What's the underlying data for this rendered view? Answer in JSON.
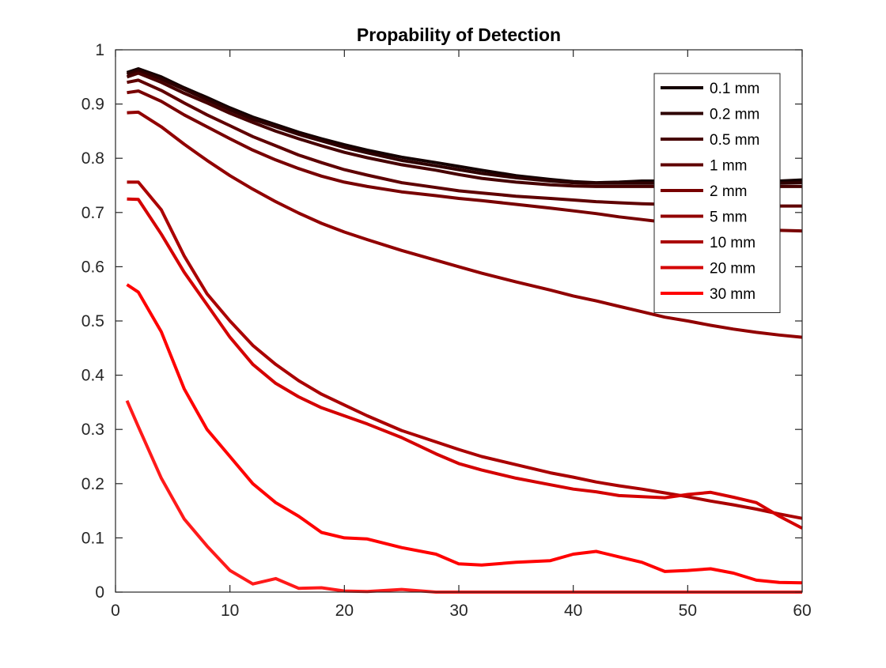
{
  "chart_data": {
    "type": "line",
    "title": "Propability of Detection",
    "xlabel": "",
    "ylabel": "",
    "xlim": [
      0,
      60
    ],
    "ylim": [
      0,
      1
    ],
    "xticks": [
      0,
      10,
      20,
      30,
      40,
      50,
      60
    ],
    "yticks": [
      0,
      0.1,
      0.2,
      0.3,
      0.4,
      0.5,
      0.6,
      0.7,
      0.8,
      0.9,
      1
    ],
    "xtick_labels": [
      "0",
      "10",
      "20",
      "30",
      "40",
      "50",
      "60"
    ],
    "ytick_labels": [
      "0",
      "0.1",
      "0.2",
      "0.3",
      "0.4",
      "0.5",
      "0.6",
      "0.7",
      "0.8",
      "0.9",
      "1"
    ],
    "grid": false,
    "legend_position": "top-right",
    "x": [
      1,
      2,
      4,
      6,
      8,
      10,
      12,
      14,
      16,
      18,
      20,
      22,
      25,
      28,
      30,
      32,
      35,
      38,
      40,
      42,
      44,
      46,
      48,
      50,
      52,
      54,
      56,
      58,
      60
    ],
    "series": [
      {
        "name": "0.1 mm",
        "color": "#140000",
        "values": [
          0.958,
          0.965,
          0.95,
          0.93,
          0.912,
          0.893,
          0.876,
          0.862,
          0.848,
          0.836,
          0.825,
          0.815,
          0.802,
          0.792,
          0.785,
          0.778,
          0.768,
          0.761,
          0.757,
          0.755,
          0.756,
          0.758,
          0.758,
          0.758,
          0.758,
          0.758,
          0.758,
          0.758,
          0.76
        ]
      },
      {
        "name": "0.2 mm",
        "color": "#2d0000",
        "values": [
          0.955,
          0.962,
          0.946,
          0.927,
          0.908,
          0.889,
          0.872,
          0.858,
          0.844,
          0.832,
          0.82,
          0.81,
          0.796,
          0.786,
          0.779,
          0.772,
          0.764,
          0.758,
          0.755,
          0.754,
          0.754,
          0.754,
          0.754,
          0.754,
          0.754,
          0.754,
          0.754,
          0.754,
          0.755
        ]
      },
      {
        "name": "0.5 mm",
        "color": "#460000",
        "values": [
          0.95,
          0.957,
          0.94,
          0.92,
          0.902,
          0.883,
          0.866,
          0.85,
          0.836,
          0.823,
          0.811,
          0.801,
          0.788,
          0.778,
          0.77,
          0.763,
          0.756,
          0.751,
          0.749,
          0.748,
          0.748,
          0.748,
          0.748,
          0.748,
          0.748,
          0.748,
          0.748,
          0.748,
          0.748
        ]
      },
      {
        "name": "1 mm",
        "color": "#5f0000",
        "values": [
          0.94,
          0.944,
          0.925,
          0.902,
          0.88,
          0.86,
          0.84,
          0.823,
          0.806,
          0.792,
          0.779,
          0.769,
          0.755,
          0.746,
          0.74,
          0.736,
          0.73,
          0.726,
          0.723,
          0.72,
          0.718,
          0.716,
          0.715,
          0.714,
          0.713,
          0.713,
          0.712,
          0.712,
          0.712
        ]
      },
      {
        "name": "2 mm",
        "color": "#780000",
        "values": [
          0.921,
          0.924,
          0.905,
          0.88,
          0.858,
          0.836,
          0.815,
          0.797,
          0.781,
          0.767,
          0.756,
          0.748,
          0.738,
          0.731,
          0.726,
          0.722,
          0.715,
          0.708,
          0.703,
          0.698,
          0.692,
          0.687,
          0.682,
          0.678,
          0.675,
          0.672,
          0.669,
          0.667,
          0.666
        ]
      },
      {
        "name": "5 mm",
        "color": "#910000",
        "values": [
          0.884,
          0.885,
          0.858,
          0.826,
          0.796,
          0.768,
          0.743,
          0.72,
          0.699,
          0.68,
          0.664,
          0.65,
          0.63,
          0.612,
          0.6,
          0.588,
          0.572,
          0.557,
          0.546,
          0.537,
          0.527,
          0.517,
          0.507,
          0.5,
          0.492,
          0.485,
          0.479,
          0.474,
          0.47
        ]
      },
      {
        "name": "10 mm",
        "color": "#aa0000",
        "values": [
          0.756,
          0.756,
          0.705,
          0.62,
          0.55,
          0.5,
          0.455,
          0.42,
          0.39,
          0.365,
          0.345,
          0.325,
          0.298,
          0.277,
          0.263,
          0.25,
          0.235,
          0.22,
          0.212,
          0.203,
          0.196,
          0.19,
          0.183,
          0.176,
          0.168,
          0.161,
          0.153,
          0.144,
          0.136
        ]
      },
      {
        "name": "20 mm",
        "color": "#d40000",
        "values": [
          0.725,
          0.724,
          0.66,
          0.59,
          0.53,
          0.47,
          0.42,
          0.385,
          0.36,
          0.34,
          0.325,
          0.31,
          0.285,
          0.255,
          0.237,
          0.225,
          0.21,
          0.198,
          0.19,
          0.185,
          0.178,
          0.176,
          0.174,
          0.18,
          0.184,
          0.175,
          0.165,
          0.14,
          0.118
        ]
      },
      {
        "name": "30 mm",
        "color": "#ff0000",
        "values": [
          0.567,
          0.553,
          0.48,
          0.375,
          0.3,
          0.25,
          0.2,
          0.165,
          0.14,
          0.11,
          0.1,
          0.098,
          0.082,
          0.07,
          0.052,
          0.05,
          0.055,
          0.058,
          0.07,
          0.075,
          0.065,
          0.055,
          0.038,
          0.04,
          0.043,
          0.035,
          0.022,
          0.018,
          0.017
        ]
      },
      {
        "name": "",
        "color": "#ff1a1a",
        "values": [
          0.353,
          0.305,
          0.21,
          0.135,
          0.085,
          0.04,
          0.015,
          0.025,
          0.007,
          0.008,
          0.002,
          0.001,
          0.005,
          0.0,
          0.0,
          0.0,
          0.0,
          0.0,
          0.0,
          0.0,
          0.0,
          0.0,
          0.0,
          0.0,
          0.0,
          0.0,
          0.0,
          0.0,
          0.0
        ]
      }
    ]
  }
}
